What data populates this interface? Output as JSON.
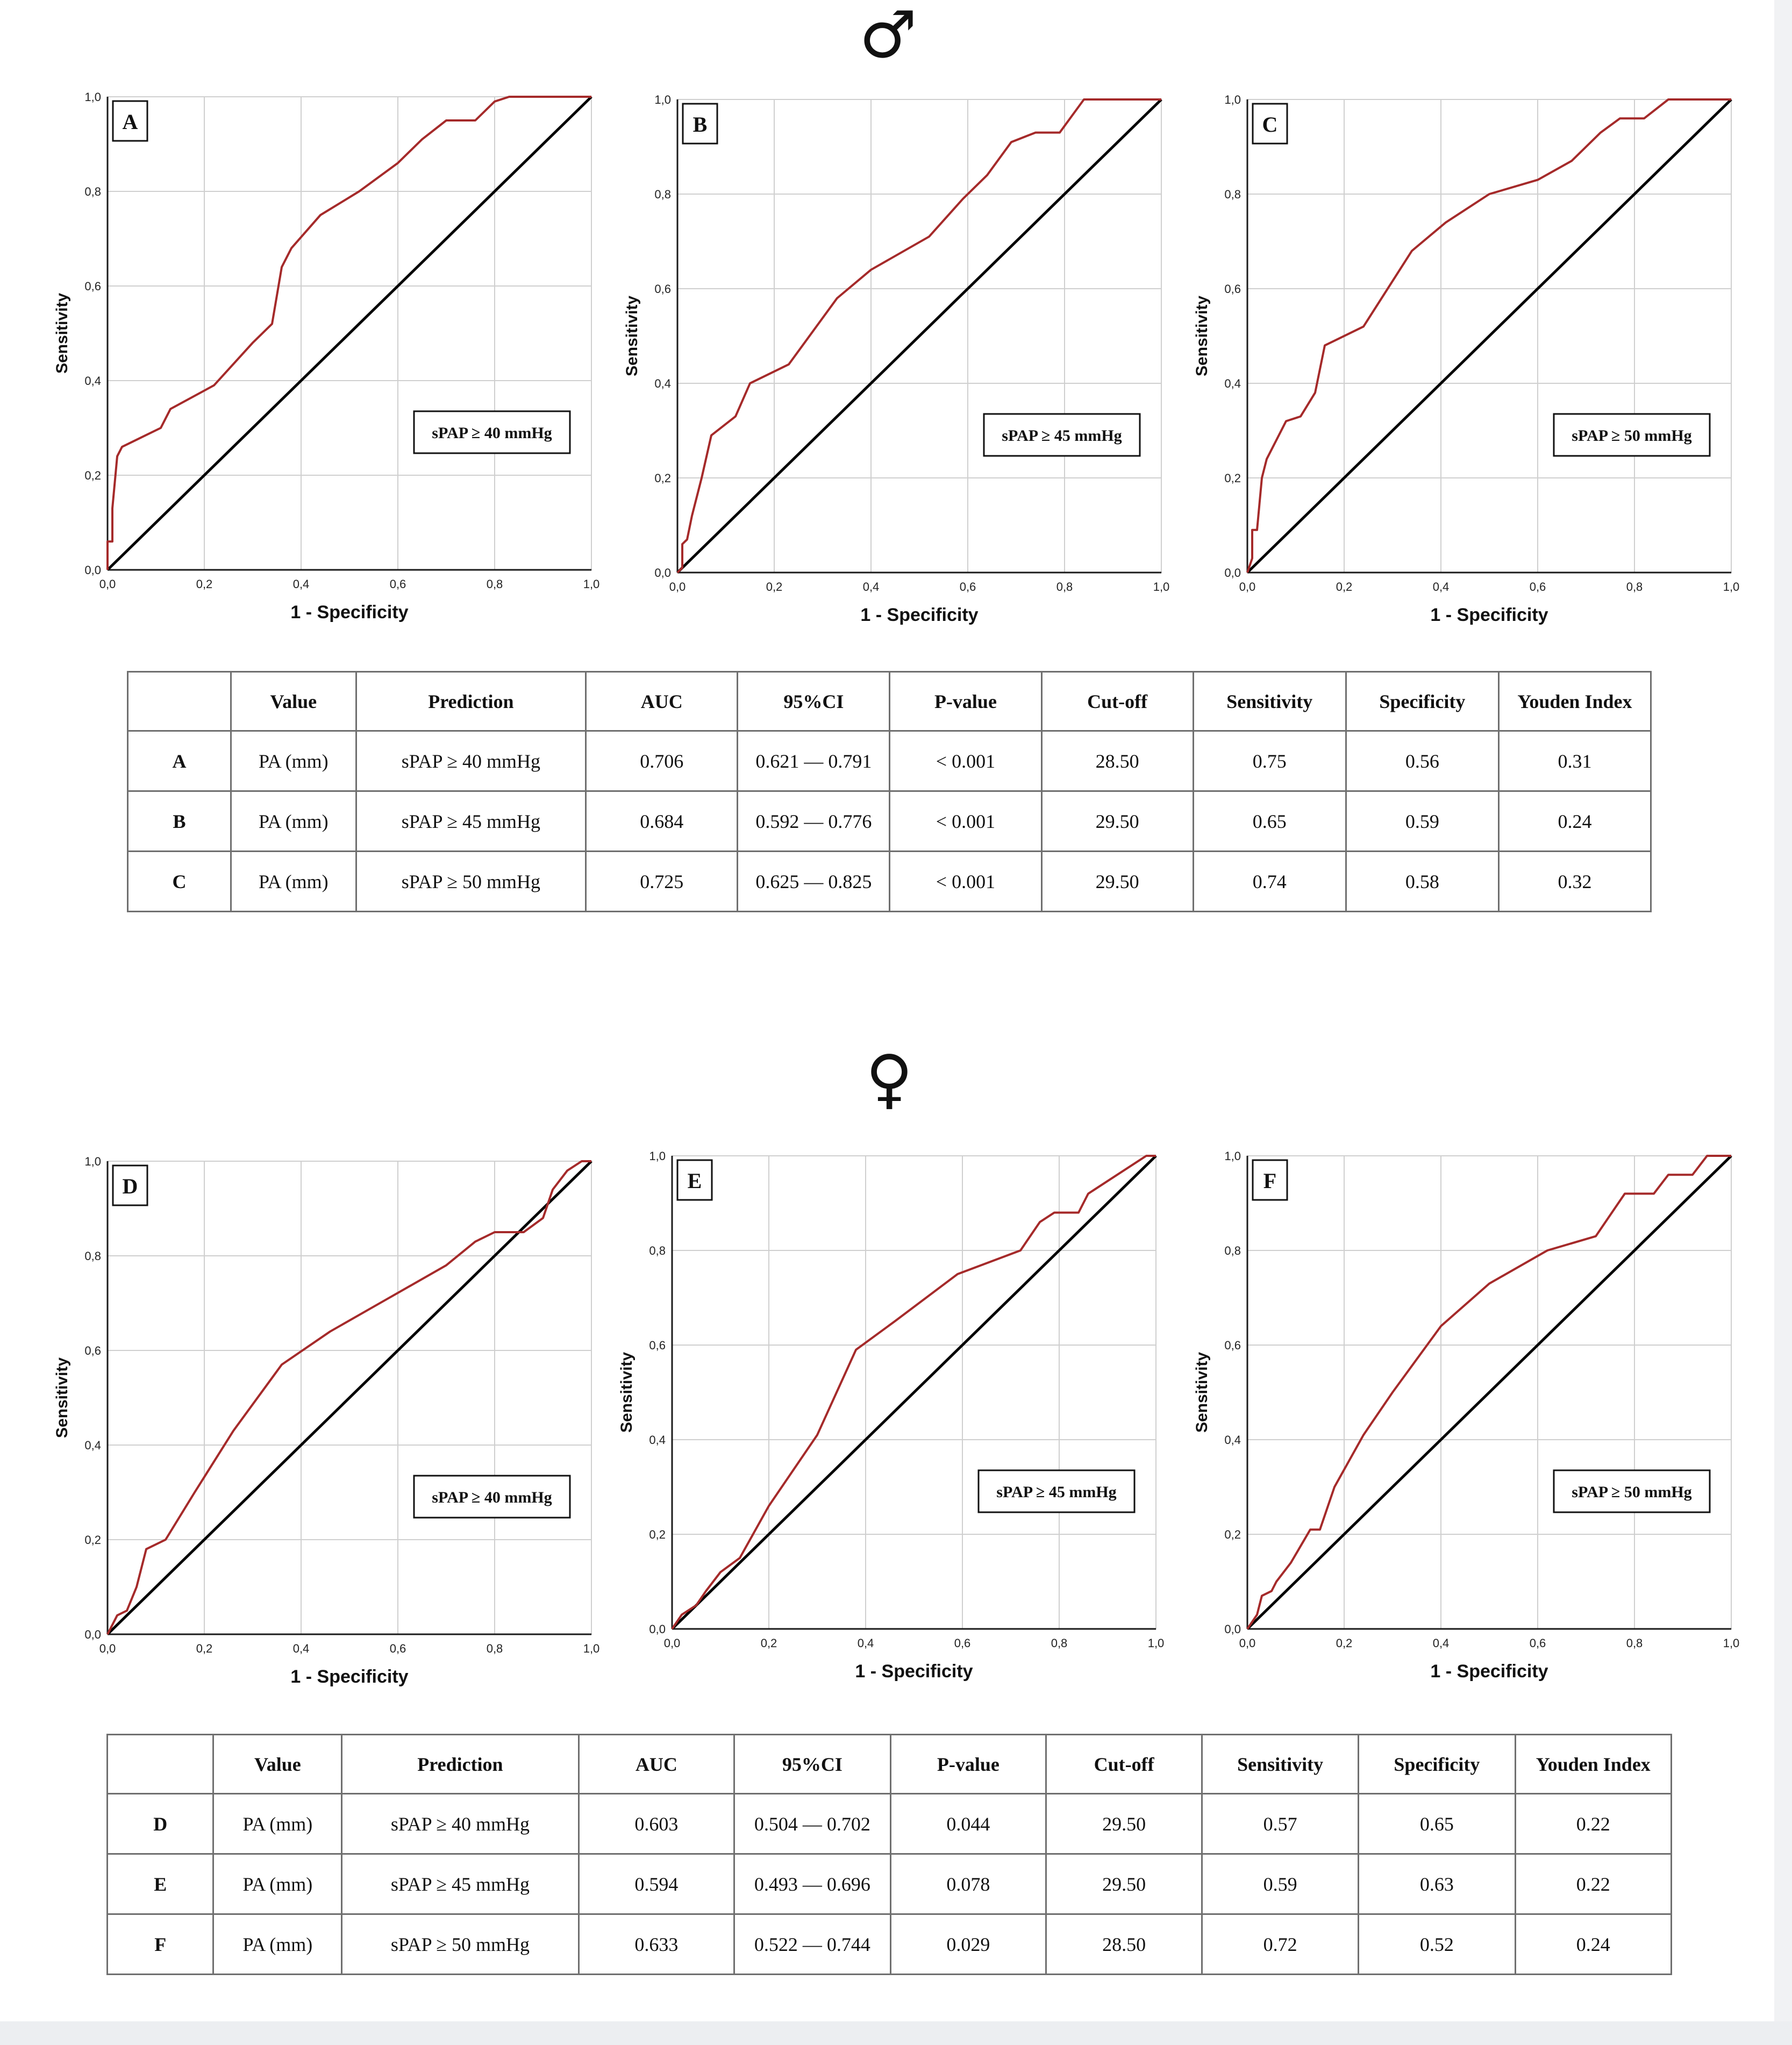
{
  "symbols": {
    "male": "♂",
    "female": "♀"
  },
  "colors": {
    "roc_curve": "#a52a2a",
    "reference_line": "#000000",
    "grid": "#cfcfcf",
    "frame": "#1a1a1a"
  },
  "chart_data": [
    {
      "type": "line",
      "panel": "A",
      "xlabel": "1 - Specificity",
      "ylabel": "Sensitivity",
      "xlim": [
        0,
        1
      ],
      "ylim": [
        0,
        1
      ],
      "xticks": [
        "0,0",
        "0,2",
        "0,4",
        "0,6",
        "0,8",
        "1,0"
      ],
      "yticks": [
        "0,0",
        "0,2",
        "0,4",
        "0,6",
        "0,8",
        "1,0"
      ],
      "grid": true,
      "legend": "sPAP ≥ 40 mmHg",
      "series": [
        {
          "x": [
            0.0,
            0.0,
            0.01,
            0.01,
            0.02,
            0.03,
            0.07,
            0.11,
            0.13,
            0.22,
            0.3,
            0.34,
            0.36,
            0.38,
            0.44,
            0.52,
            0.6,
            0.65,
            0.7,
            0.76,
            0.8,
            0.83,
            0.9,
            1.0
          ],
          "y": [
            0.0,
            0.06,
            0.06,
            0.13,
            0.24,
            0.26,
            0.28,
            0.3,
            0.34,
            0.39,
            0.48,
            0.52,
            0.64,
            0.68,
            0.75,
            0.8,
            0.86,
            0.91,
            0.95,
            0.95,
            0.99,
            1.0,
            1.0,
            1.0
          ]
        },
        {
          "x": [
            0,
            1
          ],
          "y": [
            0,
            1
          ]
        }
      ]
    },
    {
      "type": "line",
      "panel": "B",
      "xlabel": "1 - Specificity",
      "ylabel": "Sensitivity",
      "xlim": [
        0,
        1
      ],
      "ylim": [
        0,
        1
      ],
      "xticks": [
        "0,0",
        "0,2",
        "0,4",
        "0,6",
        "0,8",
        "1,0"
      ],
      "yticks": [
        "0,0",
        "0,2",
        "0,4",
        "0,6",
        "0,8",
        "1,0"
      ],
      "grid": true,
      "legend": "sPAP ≥ 45 mmHg",
      "series": [
        {
          "x": [
            0.0,
            0.01,
            0.01,
            0.02,
            0.03,
            0.05,
            0.07,
            0.12,
            0.15,
            0.23,
            0.33,
            0.4,
            0.52,
            0.59,
            0.64,
            0.69,
            0.74,
            0.79,
            0.84,
            0.9,
            1.0
          ],
          "y": [
            0.0,
            0.01,
            0.06,
            0.07,
            0.12,
            0.2,
            0.29,
            0.33,
            0.4,
            0.44,
            0.58,
            0.64,
            0.71,
            0.79,
            0.84,
            0.91,
            0.93,
            0.93,
            1.0,
            1.0,
            1.0
          ]
        },
        {
          "x": [
            0,
            1
          ],
          "y": [
            0,
            1
          ]
        }
      ]
    },
    {
      "type": "line",
      "panel": "C",
      "xlabel": "1 - Specificity",
      "ylabel": "Sensitivity",
      "xlim": [
        0,
        1
      ],
      "ylim": [
        0,
        1
      ],
      "xticks": [
        "0,0",
        "0,2",
        "0,4",
        "0,6",
        "0,8",
        "1,0"
      ],
      "yticks": [
        "0,0",
        "0,2",
        "0,4",
        "0,6",
        "0,8",
        "1,0"
      ],
      "grid": true,
      "legend": "sPAP ≥ 50 mmHg",
      "series": [
        {
          "x": [
            0.0,
            0.01,
            0.01,
            0.02,
            0.03,
            0.04,
            0.06,
            0.08,
            0.11,
            0.14,
            0.16,
            0.24,
            0.34,
            0.41,
            0.5,
            0.6,
            0.67,
            0.73,
            0.77,
            0.82,
            0.87,
            0.9,
            1.0
          ],
          "y": [
            0.0,
            0.03,
            0.09,
            0.09,
            0.2,
            0.24,
            0.28,
            0.32,
            0.33,
            0.38,
            0.48,
            0.52,
            0.68,
            0.74,
            0.8,
            0.83,
            0.87,
            0.93,
            0.96,
            0.96,
            1.0,
            1.0,
            1.0
          ]
        },
        {
          "x": [
            0,
            1
          ],
          "y": [
            0,
            1
          ]
        }
      ]
    },
    {
      "type": "line",
      "panel": "D",
      "xlabel": "1 - Specificity",
      "ylabel": "Sensitivity",
      "xlim": [
        0,
        1
      ],
      "ylim": [
        0,
        1
      ],
      "xticks": [
        "0,0",
        "0,2",
        "0,4",
        "0,6",
        "0,8",
        "1,0"
      ],
      "yticks": [
        "0,0",
        "0,2",
        "0,4",
        "0,6",
        "0,8",
        "1,0"
      ],
      "grid": true,
      "legend": "sPAP ≥ 40 mmHg",
      "series": [
        {
          "x": [
            0.0,
            0.02,
            0.04,
            0.06,
            0.08,
            0.12,
            0.18,
            0.26,
            0.36,
            0.46,
            0.58,
            0.7,
            0.76,
            0.8,
            0.86,
            0.9,
            0.92,
            0.95,
            0.98,
            1.0
          ],
          "y": [
            0.0,
            0.04,
            0.05,
            0.1,
            0.18,
            0.2,
            0.3,
            0.43,
            0.57,
            0.64,
            0.71,
            0.78,
            0.83,
            0.85,
            0.85,
            0.88,
            0.94,
            0.98,
            1.0,
            1.0
          ]
        },
        {
          "x": [
            0,
            1
          ],
          "y": [
            0,
            1
          ]
        }
      ]
    },
    {
      "type": "line",
      "panel": "E",
      "xlabel": "1 - Specificity",
      "ylabel": "Sensitivity",
      "xlim": [
        0,
        1
      ],
      "ylim": [
        0,
        1
      ],
      "xticks": [
        "0,0",
        "0,2",
        "0,4",
        "0,6",
        "0,8",
        "1,0"
      ],
      "yticks": [
        "0,0",
        "0,2",
        "0,4",
        "0,6",
        "0,8",
        "1,0"
      ],
      "grid": true,
      "legend": "sPAP ≥ 45 mmHg",
      "series": [
        {
          "x": [
            0.0,
            0.02,
            0.05,
            0.07,
            0.1,
            0.14,
            0.2,
            0.26,
            0.3,
            0.38,
            0.46,
            0.59,
            0.72,
            0.76,
            0.79,
            0.84,
            0.86,
            0.92,
            0.98,
            1.0
          ],
          "y": [
            0.0,
            0.03,
            0.05,
            0.08,
            0.12,
            0.15,
            0.26,
            0.35,
            0.41,
            0.59,
            0.65,
            0.75,
            0.8,
            0.86,
            0.88,
            0.88,
            0.92,
            0.96,
            1.0,
            1.0
          ]
        },
        {
          "x": [
            0,
            1
          ],
          "y": [
            0,
            1
          ]
        }
      ]
    },
    {
      "type": "line",
      "panel": "F",
      "xlabel": "1 - Specificity",
      "ylabel": "Sensitivity",
      "xlim": [
        0,
        1
      ],
      "ylim": [
        0,
        1
      ],
      "xticks": [
        "0,0",
        "0,2",
        "0,4",
        "0,6",
        "0,8",
        "1,0"
      ],
      "yticks": [
        "0,0",
        "0,2",
        "0,4",
        "0,6",
        "0,8",
        "1,0"
      ],
      "grid": true,
      "legend": "sPAP ≥ 50 mmHg",
      "series": [
        {
          "x": [
            0.0,
            0.02,
            0.03,
            0.05,
            0.06,
            0.09,
            0.13,
            0.15,
            0.18,
            0.24,
            0.3,
            0.4,
            0.5,
            0.62,
            0.72,
            0.78,
            0.84,
            0.87,
            0.92,
            0.95,
            1.0
          ],
          "y": [
            0.0,
            0.03,
            0.07,
            0.08,
            0.1,
            0.14,
            0.21,
            0.21,
            0.3,
            0.41,
            0.5,
            0.64,
            0.73,
            0.8,
            0.83,
            0.92,
            0.92,
            0.96,
            0.96,
            1.0,
            1.0
          ]
        },
        {
          "x": [
            0,
            1
          ],
          "y": [
            0,
            1
          ]
        }
      ]
    }
  ],
  "tables": [
    {
      "headers": [
        "",
        "Value",
        "Prediction",
        "AUC",
        "95%CI",
        "P-value",
        "Cut-off",
        "Sensitivity",
        "Specificity",
        "Youden Index"
      ],
      "rows": [
        [
          "A",
          "PA (mm)",
          "sPAP ≥ 40 mmHg",
          "0.706",
          "0.621 — 0.791",
          "< 0.001",
          "28.50",
          "0.75",
          "0.56",
          "0.31"
        ],
        [
          "B",
          "PA (mm)",
          "sPAP ≥ 45 mmHg",
          "0.684",
          "0.592 — 0.776",
          "< 0.001",
          "29.50",
          "0.65",
          "0.59",
          "0.24"
        ],
        [
          "C",
          "PA (mm)",
          "sPAP ≥ 50 mmHg",
          "0.725",
          "0.625 — 0.825",
          "< 0.001",
          "29.50",
          "0.74",
          "0.58",
          "0.32"
        ]
      ]
    },
    {
      "headers": [
        "",
        "Value",
        "Prediction",
        "AUC",
        "95%CI",
        "P-value",
        "Cut-off",
        "Sensitivity",
        "Specificity",
        "Youden Index"
      ],
      "rows": [
        [
          "D",
          "PA (mm)",
          "sPAP ≥ 40 mmHg",
          "0.603",
          "0.504 — 0.702",
          "0.044",
          "29.50",
          "0.57",
          "0.65",
          "0.22"
        ],
        [
          "E",
          "PA (mm)",
          "sPAP ≥ 45 mmHg",
          "0.594",
          "0.493 — 0.696",
          "0.078",
          "29.50",
          "0.59",
          "0.63",
          "0.22"
        ],
        [
          "F",
          "PA (mm)",
          "sPAP ≥ 50 mmHg",
          "0.633",
          "0.522 — 0.744",
          "0.029",
          "28.50",
          "0.72",
          "0.52",
          "0.24"
        ]
      ]
    }
  ]
}
